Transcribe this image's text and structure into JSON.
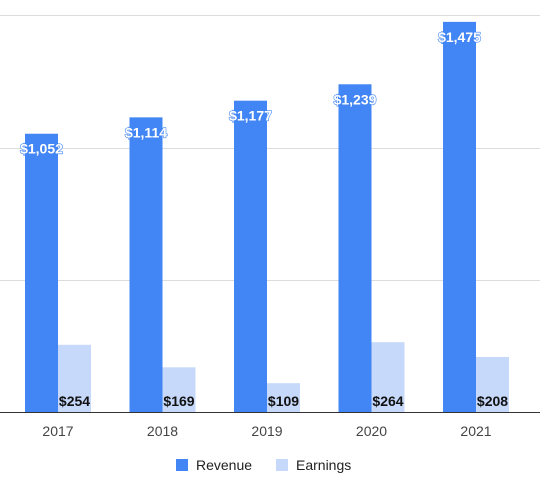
{
  "chart_data": {
    "type": "bar",
    "title": "",
    "xlabel": "",
    "ylabel": "",
    "categories": [
      "2017",
      "2018",
      "2019",
      "2020",
      "2021"
    ],
    "series": [
      {
        "name": "Revenue",
        "color": "#4285f4",
        "values": [
          1052,
          1114,
          1177,
          1239,
          1475
        ],
        "labels": [
          "$1,052",
          "$1,114",
          "$1,177",
          "$1,239",
          "$1,475"
        ]
      },
      {
        "name": "Earnings",
        "color": "#c6d9fa",
        "values": [
          254,
          169,
          109,
          264,
          208
        ],
        "labels": [
          "$254",
          "$169",
          "$109",
          "$264",
          "$208"
        ]
      }
    ],
    "ylim": [
      0,
      2000
    ],
    "grid": true,
    "legend": "bottom-center"
  }
}
